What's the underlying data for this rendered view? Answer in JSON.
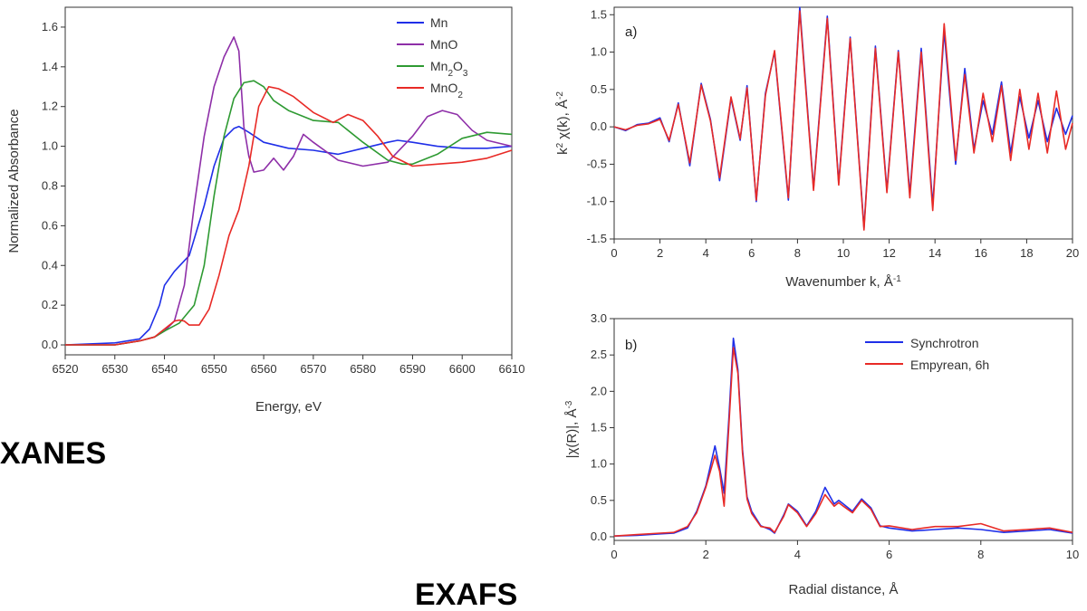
{
  "labels": {
    "xanes": "XANES",
    "exafs": "EXAFS"
  },
  "colors": {
    "blue": "#1f2fe8",
    "purple": "#8e2fa8",
    "green": "#2e9a32",
    "red": "#e82a26"
  },
  "chart_data": [
    {
      "type": "line",
      "xlabel": "Energy, eV",
      "ylabel": "Normalized Absorbance",
      "xlim": [
        6520,
        6610
      ],
      "ylim": [
        -0.05,
        1.7
      ],
      "xticks": [
        6520,
        6530,
        6540,
        6550,
        6560,
        6570,
        6580,
        6590,
        6600,
        6610
      ],
      "yticks": [
        0.0,
        0.2,
        0.4,
        0.6,
        0.8,
        1.0,
        1.2,
        1.4,
        1.6
      ],
      "legend_position": "top-right",
      "series": [
        {
          "name": "Mn",
          "color": "#1f2fe8",
          "x": [
            6520,
            6530,
            6535,
            6537,
            6539,
            6540,
            6542,
            6545,
            6548,
            6550,
            6552,
            6554,
            6555,
            6557,
            6560,
            6565,
            6570,
            6575,
            6580,
            6585,
            6587,
            6590,
            6595,
            6600,
            6605,
            6610
          ],
          "y": [
            0.0,
            0.01,
            0.03,
            0.08,
            0.2,
            0.3,
            0.37,
            0.45,
            0.7,
            0.9,
            1.04,
            1.09,
            1.1,
            1.07,
            1.02,
            0.99,
            0.98,
            0.96,
            0.99,
            1.02,
            1.03,
            1.02,
            1.0,
            0.99,
            0.99,
            1.0
          ]
        },
        {
          "name": "MnO",
          "color": "#8e2fa8",
          "x": [
            6520,
            6530,
            6535,
            6538,
            6540,
            6542,
            6544,
            6546,
            6548,
            6550,
            6552,
            6554,
            6555,
            6556,
            6557,
            6558,
            6560,
            6562,
            6564,
            6566,
            6568,
            6570,
            6575,
            6580,
            6585,
            6590,
            6593,
            6596,
            6599,
            6602,
            6605,
            6610
          ],
          "y": [
            0.0,
            0.0,
            0.02,
            0.04,
            0.07,
            0.12,
            0.3,
            0.7,
            1.05,
            1.3,
            1.45,
            1.55,
            1.48,
            1.1,
            0.95,
            0.87,
            0.88,
            0.94,
            0.88,
            0.95,
            1.06,
            1.02,
            0.93,
            0.9,
            0.92,
            1.05,
            1.15,
            1.18,
            1.16,
            1.08,
            1.03,
            1.0
          ]
        },
        {
          "name": "Mn2O3",
          "color": "#2e9a32",
          "x": [
            6520,
            6530,
            6535,
            6538,
            6540,
            6543,
            6546,
            6548,
            6550,
            6552,
            6554,
            6556,
            6558,
            6560,
            6562,
            6565,
            6570,
            6575,
            6580,
            6585,
            6588,
            6590,
            6595,
            6600,
            6605,
            6610
          ],
          "y": [
            0.0,
            0.0,
            0.02,
            0.04,
            0.07,
            0.11,
            0.2,
            0.4,
            0.75,
            1.05,
            1.24,
            1.32,
            1.33,
            1.3,
            1.23,
            1.18,
            1.13,
            1.12,
            1.02,
            0.93,
            0.91,
            0.91,
            0.96,
            1.04,
            1.07,
            1.06
          ]
        },
        {
          "name": "MnO2",
          "color": "#e82a26",
          "x": [
            6520,
            6530,
            6535,
            6538,
            6540,
            6542,
            6543,
            6544,
            6545,
            6547,
            6549,
            6551,
            6553,
            6555,
            6557,
            6559,
            6561,
            6563,
            6566,
            6570,
            6574,
            6577,
            6580,
            6583,
            6586,
            6590,
            6595,
            6600,
            6605,
            6610
          ],
          "y": [
            0.0,
            0.0,
            0.02,
            0.04,
            0.08,
            0.12,
            0.125,
            0.12,
            0.1,
            0.1,
            0.18,
            0.35,
            0.55,
            0.68,
            0.9,
            1.2,
            1.3,
            1.29,
            1.25,
            1.17,
            1.12,
            1.16,
            1.13,
            1.05,
            0.95,
            0.9,
            0.91,
            0.92,
            0.94,
            0.98
          ]
        }
      ]
    },
    {
      "type": "line",
      "panel_label": "a)",
      "xlabel": "Wavenumber k, Å",
      "xlabel_sup": "-1",
      "ylabel_prefix": "k",
      "ylabel_sup1": "2",
      "ylabel_mid": " χ(k), Å",
      "ylabel_sup2": "-2",
      "xlim": [
        0,
        20
      ],
      "ylim": [
        -1.5,
        1.6
      ],
      "xticks": [
        0,
        2,
        4,
        6,
        8,
        10,
        12,
        14,
        16,
        18,
        20
      ],
      "yticks": [
        -1.5,
        -1.0,
        -0.5,
        0.0,
        0.5,
        1.0,
        1.5
      ],
      "series": [
        {
          "color": "#1f2fe8",
          "x": [
            0,
            0.5,
            1,
            1.5,
            2,
            2.4,
            2.8,
            3.3,
            3.8,
            4.2,
            4.6,
            5.1,
            5.5,
            5.8,
            6.2,
            6.6,
            7.0,
            7.6,
            8.1,
            8.7,
            9.3,
            9.8,
            10.3,
            10.9,
            11.4,
            11.9,
            12.4,
            12.9,
            13.4,
            13.9,
            14.4,
            14.9,
            15.3,
            15.7,
            16.1,
            16.5,
            16.9,
            17.3,
            17.7,
            18.1,
            18.5,
            18.9,
            19.3,
            19.7,
            20
          ],
          "y": [
            0,
            -0.05,
            0.03,
            0.05,
            0.12,
            -0.2,
            0.32,
            -0.52,
            0.58,
            0.1,
            -0.72,
            0.38,
            -0.18,
            0.55,
            -1.0,
            0.45,
            1.0,
            -0.98,
            1.6,
            -0.82,
            1.48,
            -0.75,
            1.2,
            -1.35,
            1.08,
            -0.85,
            1.02,
            -0.9,
            1.05,
            -1.05,
            1.28,
            -0.5,
            0.78,
            -0.3,
            0.35,
            -0.1,
            0.6,
            -0.35,
            0.4,
            -0.15,
            0.35,
            -0.2,
            0.25,
            -0.1,
            0.15
          ]
        },
        {
          "color": "#e82a26",
          "x": [
            0,
            0.5,
            1,
            1.5,
            2,
            2.4,
            2.8,
            3.3,
            3.8,
            4.2,
            4.6,
            5.1,
            5.5,
            5.8,
            6.2,
            6.6,
            7.0,
            7.6,
            8.1,
            8.7,
            9.3,
            9.8,
            10.3,
            10.9,
            11.4,
            11.9,
            12.4,
            12.9,
            13.4,
            13.9,
            14.4,
            14.9,
            15.3,
            15.7,
            16.1,
            16.5,
            16.9,
            17.3,
            17.7,
            18.1,
            18.5,
            18.9,
            19.3,
            19.7,
            20
          ],
          "y": [
            0,
            -0.04,
            0.02,
            0.04,
            0.1,
            -0.18,
            0.3,
            -0.48,
            0.56,
            0.08,
            -0.68,
            0.4,
            -0.16,
            0.52,
            -0.98,
            0.42,
            1.02,
            -0.95,
            1.55,
            -0.85,
            1.45,
            -0.78,
            1.18,
            -1.38,
            1.05,
            -0.88,
            1.0,
            -0.95,
            1.0,
            -1.12,
            1.38,
            -0.45,
            0.7,
            -0.35,
            0.45,
            -0.2,
            0.55,
            -0.45,
            0.5,
            -0.3,
            0.45,
            -0.35,
            0.48,
            -0.3,
            0.05
          ]
        }
      ]
    },
    {
      "type": "line",
      "panel_label": "b)",
      "xlabel": "Radial distance, Å",
      "ylabel_prefix": "|χ(R)|, Å",
      "ylabel_sup": "-3",
      "xlim": [
        0,
        10
      ],
      "ylim": [
        -0.05,
        3.0
      ],
      "xticks": [
        0,
        2,
        4,
        6,
        8,
        10
      ],
      "yticks": [
        0.0,
        0.5,
        1.0,
        1.5,
        2.0,
        2.5,
        3.0
      ],
      "legend_position": "top-right",
      "series": [
        {
          "name": "Synchrotron",
          "color": "#1f2fe8",
          "x": [
            0,
            0.5,
            1,
            1.3,
            1.6,
            1.8,
            2.0,
            2.2,
            2.3,
            2.4,
            2.5,
            2.6,
            2.7,
            2.8,
            2.9,
            3.0,
            3.2,
            3.4,
            3.5,
            3.7,
            3.8,
            4.0,
            4.2,
            4.4,
            4.6,
            4.8,
            4.9,
            5.0,
            5.2,
            5.4,
            5.6,
            5.8,
            6.0,
            6.5,
            7.0,
            7.5,
            8.0,
            8.5,
            9.0,
            9.5,
            10
          ],
          "y": [
            0.01,
            0.02,
            0.04,
            0.05,
            0.12,
            0.35,
            0.7,
            1.25,
            0.95,
            0.6,
            1.6,
            2.73,
            2.3,
            1.2,
            0.55,
            0.35,
            0.15,
            0.1,
            0.05,
            0.3,
            0.45,
            0.35,
            0.15,
            0.35,
            0.68,
            0.45,
            0.5,
            0.45,
            0.35,
            0.52,
            0.4,
            0.15,
            0.12,
            0.08,
            0.1,
            0.12,
            0.1,
            0.06,
            0.08,
            0.1,
            0.05
          ]
        },
        {
          "name": "Empyrean, 6h",
          "color": "#e82a26",
          "x": [
            0,
            0.5,
            1,
            1.3,
            1.6,
            1.8,
            2.0,
            2.2,
            2.3,
            2.4,
            2.5,
            2.6,
            2.7,
            2.8,
            2.9,
            3.0,
            3.2,
            3.4,
            3.5,
            3.7,
            3.8,
            4.0,
            4.2,
            4.4,
            4.6,
            4.8,
            4.9,
            5.0,
            5.2,
            5.4,
            5.6,
            5.8,
            6.0,
            6.5,
            7.0,
            7.5,
            8.0,
            8.5,
            9.0,
            9.5,
            10
          ],
          "y": [
            0.01,
            0.03,
            0.05,
            0.06,
            0.14,
            0.33,
            0.68,
            1.12,
            0.9,
            0.42,
            1.5,
            2.6,
            2.25,
            1.15,
            0.52,
            0.32,
            0.14,
            0.12,
            0.06,
            0.28,
            0.44,
            0.33,
            0.14,
            0.32,
            0.58,
            0.42,
            0.47,
            0.42,
            0.33,
            0.5,
            0.38,
            0.14,
            0.15,
            0.1,
            0.14,
            0.14,
            0.18,
            0.08,
            0.1,
            0.12,
            0.06
          ]
        }
      ]
    }
  ]
}
